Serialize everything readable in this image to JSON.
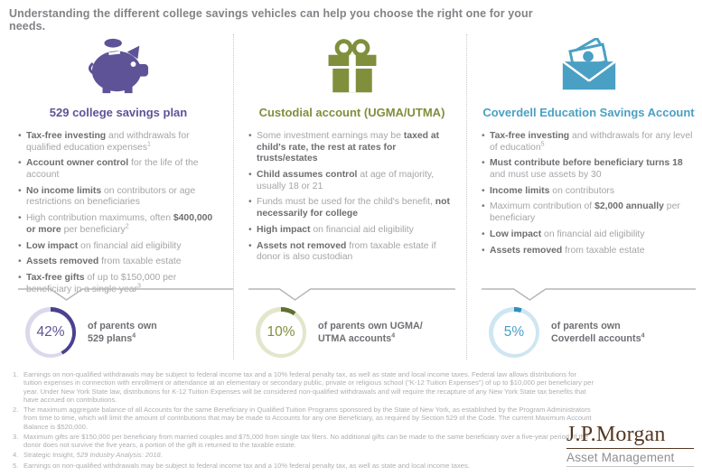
{
  "page": {
    "header": "Understanding the different college savings vehicles can help you choose the right one for your needs."
  },
  "columns": [
    {
      "icon": "piggy-bank-icon",
      "title": "529 college savings plan",
      "color": "#5E5397",
      "bullets": [
        [
          {
            "t": "Tax-free investing",
            "b": 1
          },
          {
            "t": " and withdrawals for qualified education expenses"
          },
          {
            "t": "1",
            "sup": 1
          }
        ],
        [
          {
            "t": "Account owner control",
            "b": 1
          },
          {
            "t": " for the life of the account"
          }
        ],
        [
          {
            "t": "No income limits",
            "b": 1
          },
          {
            "t": " on contributors or age restrictions on beneficiaries"
          }
        ],
        [
          {
            "t": "High contribution maximums, often "
          },
          {
            "t": "$400,000 or more",
            "b": 1
          },
          {
            "t": " per beneficiary"
          },
          {
            "t": "2",
            "sup": 1
          }
        ],
        [
          {
            "t": "Low impact",
            "b": 1
          },
          {
            "t": " on financial aid eligibility"
          }
        ],
        [
          {
            "t": "Assets removed",
            "b": 1
          },
          {
            "t": " from taxable estate"
          }
        ],
        [
          {
            "t": "Tax-free gifts",
            "b": 1
          },
          {
            "t": " of up to $150,000 per beneficiary in a single year"
          },
          {
            "t": "3",
            "sup": 1
          }
        ]
      ],
      "stat": {
        "percent_label": "42%",
        "value": 42,
        "arc_color": "#4A4190",
        "ring_color": "#DCD8EC",
        "line1": "of parents own",
        "line2": "529 plans",
        "sup": "4"
      }
    },
    {
      "icon": "gift-box-icon",
      "title": "Custodial account (UGMA/UTMA)",
      "color": "#7F8F3C",
      "bullets": [
        [
          {
            "t": "Some investment earnings may be "
          },
          {
            "t": "taxed at child's rate, the rest at rates for trusts/estates",
            "b": 1
          }
        ],
        [
          {
            "t": "Child assumes control",
            "b": 1
          },
          {
            "t": " at age of majority, usually 18 or 21"
          }
        ],
        [
          {
            "t": "Funds must be used for the child's benefit, "
          },
          {
            "t": "not necessarily for college",
            "b": 1
          }
        ],
        [
          {
            "t": "High impact",
            "b": 1
          },
          {
            "t": " on financial aid eligibility"
          }
        ],
        [
          {
            "t": "Assets not removed",
            "b": 1
          },
          {
            "t": " from taxable estate if donor is also custodian"
          }
        ]
      ],
      "stat": {
        "percent_label": "10%",
        "value": 10,
        "arc_color": "#5F7030",
        "ring_color": "#E2E6CB",
        "line1": "of parents own UGMA/",
        "line2": "UTMA accounts",
        "sup": "4"
      }
    },
    {
      "icon": "envelope-money-icon",
      "title": "Coverdell Education Savings Account",
      "color": "#4AA0C4",
      "bullets": [
        [
          {
            "t": "Tax-free investing",
            "b": 1
          },
          {
            "t": " and withdrawals for any level of education"
          },
          {
            "t": "5",
            "sup": 1
          }
        ],
        [
          {
            "t": "Must contribute before beneficiary turns 18",
            "b": 1
          },
          {
            "t": " and must use assets by 30"
          }
        ],
        [
          {
            "t": "Income limits",
            "b": 1
          },
          {
            "t": " on contributors"
          }
        ],
        [
          {
            "t": "Maximum contribution of "
          },
          {
            "t": "$2,000 annually",
            "b": 1
          },
          {
            "t": " per beneficiary"
          }
        ],
        [
          {
            "t": "Low impact",
            "b": 1
          },
          {
            "t": " on financial aid eligibility"
          }
        ],
        [
          {
            "t": "Assets removed",
            "b": 1
          },
          {
            "t": " from taxable estate"
          }
        ]
      ],
      "stat": {
        "percent_label": "5%",
        "value": 5,
        "arc_color": "#2E8FB8",
        "ring_color": "#CEE6F2",
        "line1": "of parents own",
        "line2": "Coverdell accounts",
        "sup": "4"
      }
    }
  ],
  "footnotes": [
    {
      "num": "1.",
      "segments": [
        {
          "t": "Earnings on non-qualified withdrawals may be subject to federal income tax and a 10% federal penalty tax, as well as state and local income taxes. Federal law allows distributions for tuition expenses in connection with enrollment or attendance at an elementary or secondary public, private or religious school (\"K-12 Tuition Expenses\") of up to $10,000 per beneficiary per year. Under New York State law, distributions for K-12 Tuition Expenses will be considered non-qualified withdrawals and will require the recapture of any New York State tax benefits that have accrued on contributions."
        }
      ]
    },
    {
      "num": "2.",
      "segments": [
        {
          "t": "The maximum aggregate balance of all Accounts for the same Beneficiary in Qualified Tuition Programs sponsored by the State of New York, as established by the Program Administrators from time to time, which will limit the amount of contributions that may be made to Accounts for any one Beneficiary, as required by Section 529 of the Code. The current Maximum Account Balance is $520,000."
        }
      ]
    },
    {
      "num": "3.",
      "segments": [
        {
          "t": "Maximum gifts are $150,000 per beneficiary from married couples and $75,000 from single tax filers. No additional gifts can be made to the same beneficiary over a five-year period. If the donor does not survive the five years, a portion of the gift is returned to the taxable estate."
        }
      ]
    },
    {
      "num": "4.",
      "segments": [
        {
          "t": "Strategic Insight, "
        },
        {
          "t": "529 Industry Analysis: 2018",
          "i": 1
        },
        {
          "t": "."
        }
      ]
    },
    {
      "num": "5.",
      "segments": [
        {
          "t": "Earnings on non-qualified withdrawals may be subject to federal income tax and a 10% federal penalty tax, as well as state and local income taxes."
        }
      ]
    }
  ],
  "logo": {
    "brand": "J.P.Morgan",
    "division": "Asset Management",
    "brand_color": "#55361F"
  }
}
